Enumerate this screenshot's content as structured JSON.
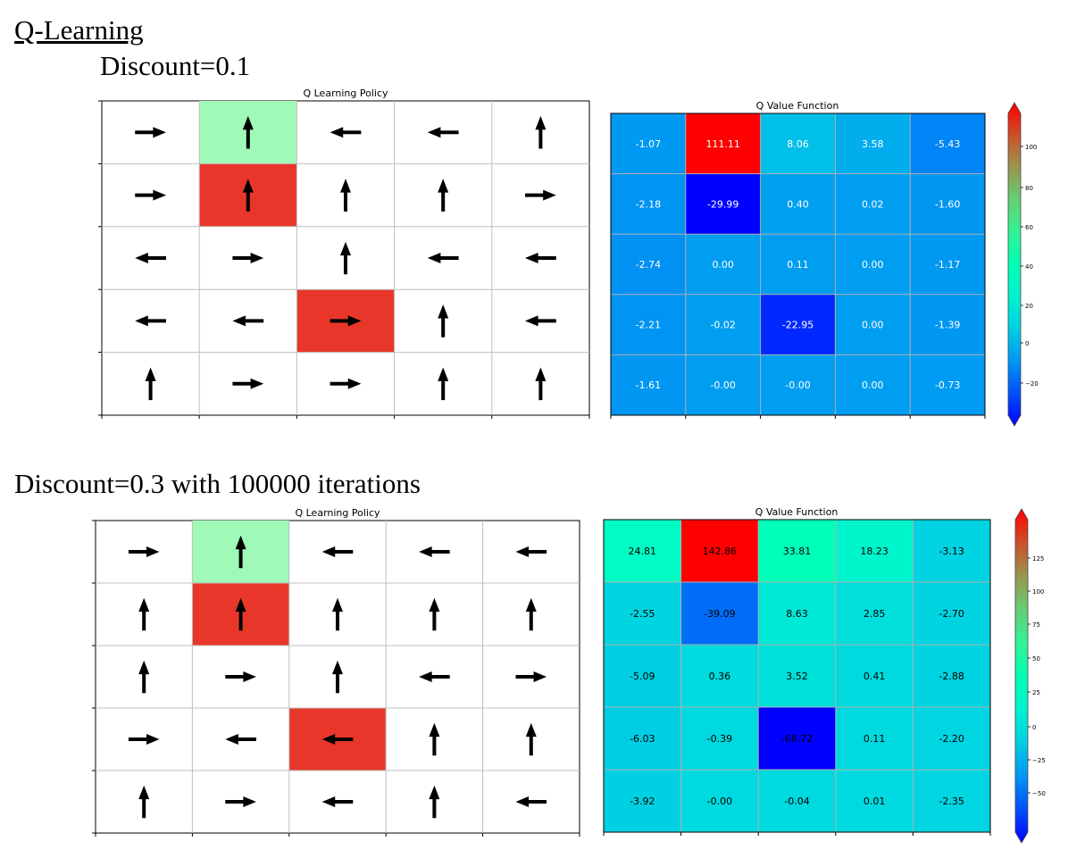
{
  "heading": "Q-Learning",
  "section1_label": "Discount=0.1",
  "section2_label": "Discount=0.3 with 100000 iterations",
  "colors": {
    "goal_cell": "#9efab6",
    "trap_cell": "#e8372a",
    "arrow": "#000000",
    "grid": "#bfbfbf"
  },
  "panels": [
    {
      "policy": {
        "title": "Q Learning Policy",
        "arrows": [
          [
            "right",
            "up",
            "left",
            "left",
            "up"
          ],
          [
            "right",
            "up",
            "up",
            "up",
            "right"
          ],
          [
            "left",
            "right",
            "up",
            "left",
            "left"
          ],
          [
            "left",
            "left",
            "right",
            "up",
            "left"
          ],
          [
            "up",
            "right",
            "right",
            "up",
            "up"
          ]
        ],
        "highlights": [
          {
            "row": 0,
            "col": 1,
            "kind": "goal"
          },
          {
            "row": 1,
            "col": 1,
            "kind": "trap"
          },
          {
            "row": 3,
            "col": 2,
            "kind": "trap"
          }
        ]
      },
      "value": {
        "title": "Q Value Function",
        "colorbar_ticks": [
          "100",
          "80",
          "60",
          "40",
          "20",
          "0",
          "−20"
        ]
      }
    },
    {
      "policy": {
        "title": "Q Learning Policy",
        "arrows": [
          [
            "right",
            "up",
            "left",
            "left",
            "left"
          ],
          [
            "up",
            "up",
            "up",
            "up",
            "up"
          ],
          [
            "up",
            "right",
            "up",
            "left",
            "right"
          ],
          [
            "right",
            "left",
            "left",
            "up",
            "up"
          ],
          [
            "up",
            "right",
            "left",
            "up",
            "left"
          ]
        ],
        "highlights": [
          {
            "row": 0,
            "col": 1,
            "kind": "goal"
          },
          {
            "row": 1,
            "col": 1,
            "kind": "trap"
          },
          {
            "row": 3,
            "col": 2,
            "kind": "trap"
          }
        ]
      },
      "value": {
        "title": "Q Value Function",
        "colorbar_ticks": [
          "125",
          "100",
          "75",
          "50",
          "25",
          "0",
          "−25",
          "−50"
        ]
      }
    }
  ],
  "chart_data": [
    {
      "type": "heatmap",
      "title": "Q Value Function",
      "rows": 5,
      "cols": 5,
      "values": [
        [
          "-1.07",
          "111.11",
          "8.06",
          "3.58",
          "-5.43"
        ],
        [
          "-2.18",
          "-29.99",
          "0.40",
          "0.02",
          "-1.60"
        ],
        [
          "-2.74",
          "0.00",
          "0.11",
          "0.00",
          "-1.17"
        ],
        [
          "-2.21",
          "-0.02",
          "-22.95",
          "0.00",
          "-1.39"
        ],
        [
          "-1.61",
          "-0.00",
          "-0.00",
          "0.00",
          "-0.73"
        ]
      ],
      "colorbar_range": [
        -30,
        111.11
      ],
      "colormap": "rainbow"
    },
    {
      "type": "heatmap",
      "title": "Q Value Function",
      "rows": 5,
      "cols": 5,
      "values": [
        [
          "24.81",
          "142.86",
          "33.81",
          "18.23",
          "-3.13"
        ],
        [
          "-2.55",
          "-39.09",
          "8.63",
          "2.85",
          "-2.70"
        ],
        [
          "-5.09",
          "0.36",
          "3.52",
          "0.41",
          "-2.88"
        ],
        [
          "-6.03",
          "-0.39",
          "-68.72",
          "0.11",
          "-2.20"
        ],
        [
          "-3.92",
          "-0.00",
          "-0.04",
          "0.01",
          "-2.35"
        ]
      ],
      "colorbar_range": [
        -68.72,
        142.86
      ],
      "colormap": "rainbow"
    }
  ]
}
